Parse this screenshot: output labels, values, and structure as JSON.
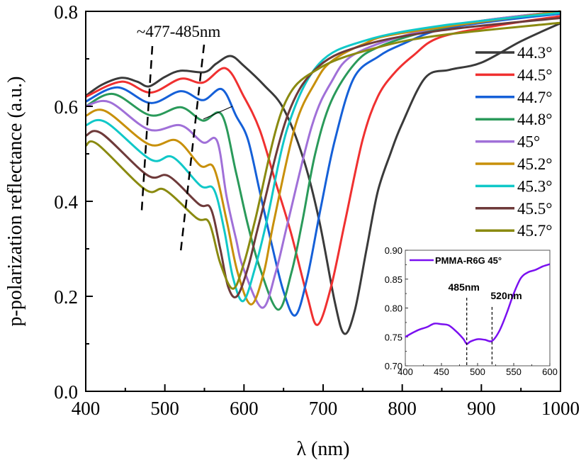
{
  "chart_data": {
    "type": "line",
    "xlabel": "λ (nm)",
    "ylabel": "p-polarization reflectance (a.u.)",
    "xlim": [
      400,
      1000
    ],
    "ylim": [
      0.0,
      0.8
    ],
    "xticks": [
      "400",
      "500",
      "600",
      "700",
      "800",
      "900",
      "1000"
    ],
    "yticks": [
      "0.0",
      "0.2",
      "0.4",
      "0.6",
      "0.8"
    ],
    "legend_position": "right",
    "annotation": "~477-485nm",
    "series": [
      {
        "name": "44.3°",
        "color": "#3a3a3a",
        "points": [
          [
            400,
            0.622
          ],
          [
            420,
            0.645
          ],
          [
            445,
            0.66
          ],
          [
            465,
            0.652
          ],
          [
            480,
            0.642
          ],
          [
            500,
            0.662
          ],
          [
            520,
            0.675
          ],
          [
            550,
            0.672
          ],
          [
            565,
            0.69
          ],
          [
            583,
            0.706
          ],
          [
            600,
            0.685
          ],
          [
            625,
            0.645
          ],
          [
            650,
            0.595
          ],
          [
            675,
            0.49
          ],
          [
            695,
            0.36
          ],
          [
            715,
            0.186
          ],
          [
            727,
            0.121
          ],
          [
            740,
            0.17
          ],
          [
            755,
            0.3
          ],
          [
            769,
            0.42
          ],
          [
            785,
            0.5
          ],
          [
            799,
            0.56
          ],
          [
            829,
            0.66
          ],
          [
            860,
            0.677
          ],
          [
            900,
            0.692
          ],
          [
            950,
            0.737
          ],
          [
            1000,
            0.775
          ]
        ]
      },
      {
        "name": "44.5°",
        "color": "#f03030",
        "points": [
          [
            400,
            0.62
          ],
          [
            445,
            0.652
          ],
          [
            482,
            0.629
          ],
          [
            520,
            0.658
          ],
          [
            548,
            0.65
          ],
          [
            577,
            0.68
          ],
          [
            600,
            0.62
          ],
          [
            620,
            0.55
          ],
          [
            640,
            0.44
          ],
          [
            659,
            0.336
          ],
          [
            680,
            0.2
          ],
          [
            693,
            0.14
          ],
          [
            710,
            0.22
          ],
          [
            728,
            0.36
          ],
          [
            750,
            0.53
          ],
          [
            769,
            0.62
          ],
          [
            790,
            0.67
          ],
          [
            814,
            0.707
          ],
          [
            847,
            0.745
          ],
          [
            920,
            0.77
          ],
          [
            1000,
            0.79
          ]
        ]
      },
      {
        "name": "44.7°",
        "color": "#1560d8",
        "points": [
          [
            400,
            0.61
          ],
          [
            440,
            0.64
          ],
          [
            482,
            0.607
          ],
          [
            520,
            0.632
          ],
          [
            548,
            0.613
          ],
          [
            572,
            0.636
          ],
          [
            590,
            0.58
          ],
          [
            605,
            0.53
          ],
          [
            620,
            0.42
          ],
          [
            635,
            0.31
          ],
          [
            650,
            0.21
          ],
          [
            665,
            0.16
          ],
          [
            680,
            0.24
          ],
          [
            697,
            0.386
          ],
          [
            715,
            0.53
          ],
          [
            739,
            0.66
          ],
          [
            770,
            0.705
          ],
          [
            799,
            0.73
          ],
          [
            847,
            0.761
          ],
          [
            920,
            0.78
          ],
          [
            1000,
            0.795
          ]
        ]
      },
      {
        "name": "44.8°",
        "color": "#2a9a5a",
        "points": [
          [
            400,
            0.6
          ],
          [
            435,
            0.626
          ],
          [
            482,
            0.581
          ],
          [
            520,
            0.598
          ],
          [
            548,
            0.57
          ],
          [
            572,
            0.582
          ],
          [
            590,
            0.46
          ],
          [
            605,
            0.35
          ],
          [
            620,
            0.26
          ],
          [
            643,
            0.172
          ],
          [
            660,
            0.25
          ],
          [
            674,
            0.36
          ],
          [
            690,
            0.5
          ],
          [
            710,
            0.61
          ],
          [
            740,
            0.69
          ],
          [
            769,
            0.724
          ],
          [
            829,
            0.757
          ],
          [
            900,
            0.78
          ],
          [
            1000,
            0.8
          ]
        ]
      },
      {
        "name": "45°",
        "color": "#a070d8",
        "points": [
          [
            400,
            0.6
          ],
          [
            430,
            0.609
          ],
          [
            480,
            0.551
          ],
          [
            520,
            0.56
          ],
          [
            548,
            0.524
          ],
          [
            566,
            0.527
          ],
          [
            578,
            0.41
          ],
          [
            590,
            0.32
          ],
          [
            599,
            0.26
          ],
          [
            623,
            0.176
          ],
          [
            640,
            0.25
          ],
          [
            656,
            0.36
          ],
          [
            686,
            0.56
          ],
          [
            710,
            0.65
          ],
          [
            739,
            0.709
          ],
          [
            814,
            0.754
          ],
          [
            900,
            0.78
          ],
          [
            1000,
            0.8
          ]
        ]
      },
      {
        "name": "45.2°",
        "color": "#c8900a",
        "points": [
          [
            400,
            0.58
          ],
          [
            425,
            0.59
          ],
          [
            480,
            0.52
          ],
          [
            515,
            0.528
          ],
          [
            545,
            0.475
          ],
          [
            562,
            0.47
          ],
          [
            578,
            0.36
          ],
          [
            592,
            0.25
          ],
          [
            609,
            0.183
          ],
          [
            625,
            0.25
          ],
          [
            638,
            0.36
          ],
          [
            665,
            0.56
          ],
          [
            690,
            0.65
          ],
          [
            710,
            0.694
          ],
          [
            750,
            0.73
          ],
          [
            799,
            0.754
          ],
          [
            1000,
            0.8
          ]
        ]
      },
      {
        "name": "45.3°",
        "color": "#10c8c8",
        "points": [
          [
            400,
            0.56
          ],
          [
            425,
            0.567
          ],
          [
            482,
            0.488
          ],
          [
            510,
            0.493
          ],
          [
            545,
            0.433
          ],
          [
            562,
            0.425
          ],
          [
            575,
            0.34
          ],
          [
            586,
            0.24
          ],
          [
            599,
            0.19
          ],
          [
            614,
            0.26
          ],
          [
            629,
            0.36
          ],
          [
            656,
            0.56
          ],
          [
            695,
            0.69
          ],
          [
            754,
            0.739
          ],
          [
            850,
            0.77
          ],
          [
            1000,
            0.797
          ]
        ]
      },
      {
        "name": "45.5°",
        "color": "#6e3a3a",
        "points": [
          [
            400,
            0.538
          ],
          [
            420,
            0.543
          ],
          [
            478,
            0.455
          ],
          [
            505,
            0.453
          ],
          [
            543,
            0.394
          ],
          [
            558,
            0.385
          ],
          [
            570,
            0.3
          ],
          [
            580,
            0.22
          ],
          [
            591,
            0.2
          ],
          [
            605,
            0.26
          ],
          [
            620,
            0.36
          ],
          [
            656,
            0.585
          ],
          [
            695,
            0.685
          ],
          [
            754,
            0.73
          ],
          [
            850,
            0.76
          ],
          [
            1000,
            0.786
          ]
        ]
      },
      {
        "name": "45.7°",
        "color": "#8a8a10",
        "points": [
          [
            400,
            0.517
          ],
          [
            415,
            0.52
          ],
          [
            475,
            0.425
          ],
          [
            500,
            0.424
          ],
          [
            540,
            0.365
          ],
          [
            556,
            0.355
          ],
          [
            570,
            0.27
          ],
          [
            586,
            0.216
          ],
          [
            600,
            0.27
          ],
          [
            614,
            0.36
          ],
          [
            650,
            0.6
          ],
          [
            695,
            0.68
          ],
          [
            769,
            0.724
          ],
          [
            850,
            0.75
          ],
          [
            1000,
            0.776
          ]
        ]
      }
    ],
    "inset": {
      "type": "line",
      "xlim": [
        400,
        600
      ],
      "ylim": [
        0.7,
        0.9
      ],
      "xticks": [
        "400",
        "450",
        "500",
        "550",
        "600"
      ],
      "yticks": [
        "0.70",
        "0.75",
        "0.80",
        "0.85",
        "0.90"
      ],
      "series": [
        {
          "name": "PMMA-R6G 45°",
          "color": "#7a10f0",
          "points": [
            [
              400,
              0.75
            ],
            [
              410,
              0.757
            ],
            [
              420,
              0.763
            ],
            [
              430,
              0.767
            ],
            [
              440,
              0.773
            ],
            [
              450,
              0.772
            ],
            [
              460,
              0.77
            ],
            [
              470,
              0.76
            ],
            [
              480,
              0.747
            ],
            [
              485,
              0.738
            ],
            [
              490,
              0.742
            ],
            [
              500,
              0.746
            ],
            [
              510,
              0.745
            ],
            [
              520,
              0.743
            ],
            [
              530,
              0.76
            ],
            [
              540,
              0.79
            ],
            [
              550,
              0.825
            ],
            [
              560,
              0.852
            ],
            [
              570,
              0.862
            ],
            [
              580,
              0.866
            ],
            [
              590,
              0.872
            ],
            [
              600,
              0.876
            ]
          ]
        }
      ],
      "annotations": [
        {
          "text": "485nm",
          "x": 485
        },
        {
          "text": "520nm",
          "x": 520
        }
      ]
    }
  }
}
